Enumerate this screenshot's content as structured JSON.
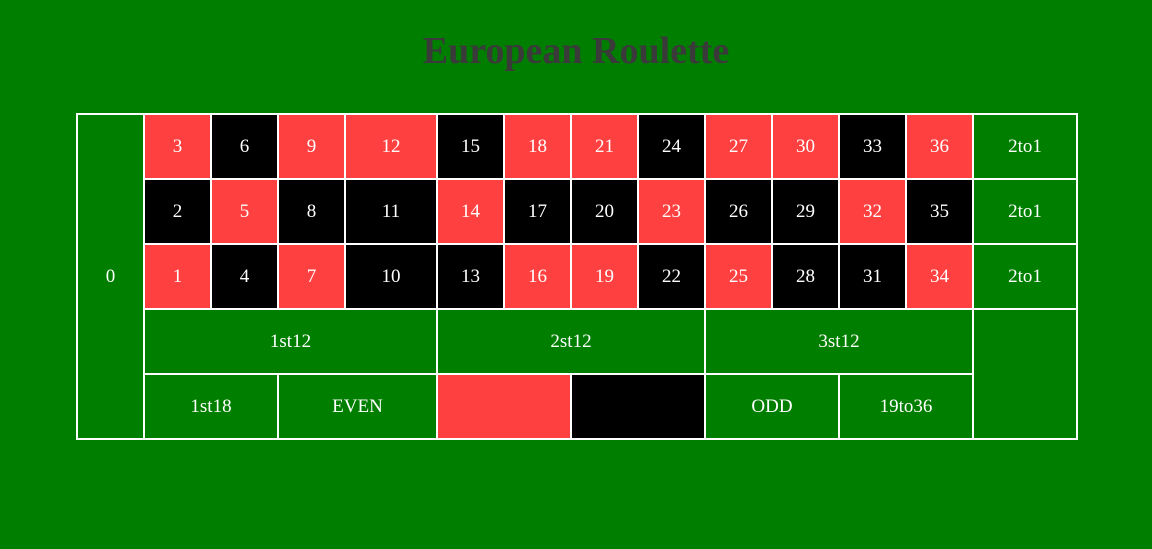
{
  "title": "European Roulette",
  "zero": "0",
  "rows": [
    {
      "cells": [
        {
          "n": "3",
          "color": "red"
        },
        {
          "n": "6",
          "color": "black"
        },
        {
          "n": "9",
          "color": "red"
        },
        {
          "n": "12",
          "color": "red"
        },
        {
          "n": "15",
          "color": "black"
        },
        {
          "n": "18",
          "color": "red"
        },
        {
          "n": "21",
          "color": "red"
        },
        {
          "n": "24",
          "color": "black"
        },
        {
          "n": "27",
          "color": "red"
        },
        {
          "n": "30",
          "color": "red"
        },
        {
          "n": "33",
          "color": "black"
        },
        {
          "n": "36",
          "color": "red"
        }
      ],
      "column_bet": "2to1"
    },
    {
      "cells": [
        {
          "n": "2",
          "color": "black"
        },
        {
          "n": "5",
          "color": "red"
        },
        {
          "n": "8",
          "color": "black"
        },
        {
          "n": "11",
          "color": "black"
        },
        {
          "n": "14",
          "color": "red"
        },
        {
          "n": "17",
          "color": "black"
        },
        {
          "n": "20",
          "color": "black"
        },
        {
          "n": "23",
          "color": "red"
        },
        {
          "n": "26",
          "color": "black"
        },
        {
          "n": "29",
          "color": "black"
        },
        {
          "n": "32",
          "color": "red"
        },
        {
          "n": "35",
          "color": "black"
        }
      ],
      "column_bet": "2to1"
    },
    {
      "cells": [
        {
          "n": "1",
          "color": "red"
        },
        {
          "n": "4",
          "color": "black"
        },
        {
          "n": "7",
          "color": "red"
        },
        {
          "n": "10",
          "color": "black"
        },
        {
          "n": "13",
          "color": "black"
        },
        {
          "n": "16",
          "color": "red"
        },
        {
          "n": "19",
          "color": "red"
        },
        {
          "n": "22",
          "color": "black"
        },
        {
          "n": "25",
          "color": "red"
        },
        {
          "n": "28",
          "color": "black"
        },
        {
          "n": "31",
          "color": "black"
        },
        {
          "n": "34",
          "color": "red"
        }
      ],
      "column_bet": "2to1"
    }
  ],
  "dozens": [
    "1st12",
    "2st12",
    "3st12"
  ],
  "outside": {
    "low": "1st18",
    "even": "EVEN",
    "red": "",
    "black": "",
    "odd": "ODD",
    "high": "19to36"
  },
  "colors": {
    "felt": "#007e00",
    "red": "#ff4040",
    "black": "#000000",
    "line": "#ffffff",
    "title": "#3a3a3a"
  }
}
